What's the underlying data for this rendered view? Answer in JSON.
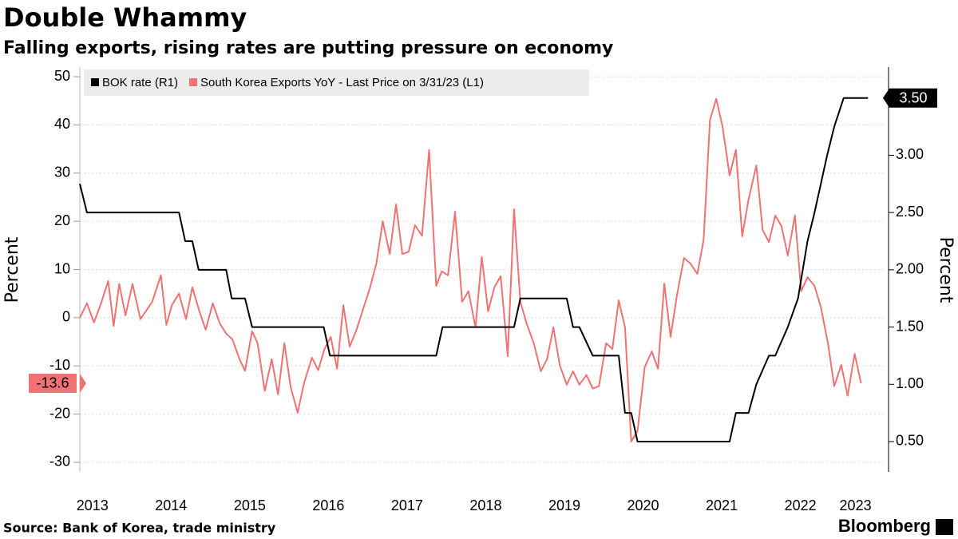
{
  "chart_data": {
    "type": "line",
    "title": "Double Whammy",
    "subtitle": "Falling exports, rising rates are putting pressure on economy",
    "ylabel": "Percent",
    "y2label": "Percent",
    "source": "Source: Bank of Korea, trade ministry",
    "brand": "Bloomberg",
    "xlim": [
      2013.34,
      2023.59
    ],
    "xticks": [
      {
        "value": 2013.5,
        "label": "2013"
      },
      {
        "value": 2014.5,
        "label": "2014"
      },
      {
        "value": 2015.5,
        "label": "2015"
      },
      {
        "value": 2016.5,
        "label": "2016"
      },
      {
        "value": 2017.5,
        "label": "2017"
      },
      {
        "value": 2018.5,
        "label": "2018"
      },
      {
        "value": 2019.5,
        "label": "2019"
      },
      {
        "value": 2020.5,
        "label": "2020"
      },
      {
        "value": 2021.5,
        "label": "2021"
      },
      {
        "value": 2022.5,
        "label": "2022"
      },
      {
        "value": 2023.2,
        "label": "2023"
      }
    ],
    "ylim": [
      -32,
      52
    ],
    "yticks": [
      -30,
      -20,
      -10,
      0,
      10,
      20,
      30,
      40,
      50
    ],
    "y2lim": [
      0.235,
      3.77
    ],
    "y2ticks": [
      {
        "value": 0.5,
        "label": "0.50"
      },
      {
        "value": 1.0,
        "label": "1.00"
      },
      {
        "value": 1.5,
        "label": "1.50"
      },
      {
        "value": 2.0,
        "label": "2.00"
      },
      {
        "value": 2.5,
        "label": "2.50"
      },
      {
        "value": 3.0,
        "label": "3.00"
      },
      {
        "value": 3.5,
        "label": "3.50"
      }
    ],
    "grid": true,
    "legend": "top-left",
    "series": [
      {
        "name": "BOK rate (R1)",
        "color": "#000000",
        "axis": "y2",
        "end_label": "3.50",
        "x": [
          2013.34,
          2013.43,
          2014.6,
          2014.68,
          2014.77,
          2014.85,
          2015.2,
          2015.27,
          2015.44,
          2015.53,
          2016.44,
          2016.52,
          2017.87,
          2017.95,
          2018.86,
          2018.94,
          2019.53,
          2019.61,
          2019.69,
          2019.86,
          2020.19,
          2020.27,
          2020.35,
          2020.43,
          2021.6,
          2021.68,
          2021.84,
          2021.94,
          2022.1,
          2022.18,
          2022.34,
          2022.47,
          2022.59,
          2022.68,
          2022.84,
          2022.93,
          2023.05,
          2023.36
        ],
        "values": [
          2.75,
          2.5,
          2.5,
          2.25,
          2.25,
          2.0,
          2.0,
          1.75,
          1.75,
          1.5,
          1.5,
          1.25,
          1.25,
          1.5,
          1.5,
          1.75,
          1.75,
          1.5,
          1.5,
          1.25,
          1.25,
          0.75,
          0.75,
          0.5,
          0.5,
          0.75,
          0.75,
          1.0,
          1.25,
          1.25,
          1.5,
          1.75,
          2.25,
          2.5,
          3.0,
          3.25,
          3.5,
          3.5
        ]
      },
      {
        "name": "South Korea Exports YoY - Last Price on 3/31/23 (L1)",
        "color": "#f07272",
        "end_label": "-13.6",
        "x": [
          2013.34,
          2013.43,
          2013.52,
          2013.61,
          2013.7,
          2013.77,
          2013.84,
          2013.92,
          2014.01,
          2014.11,
          2014.26,
          2014.37,
          2014.44,
          2014.51,
          2014.6,
          2014.69,
          2014.77,
          2014.86,
          2014.94,
          2015.03,
          2015.12,
          2015.2,
          2015.28,
          2015.37,
          2015.44,
          2015.53,
          2015.6,
          2015.69,
          2015.78,
          2015.86,
          2015.94,
          2016.02,
          2016.11,
          2016.19,
          2016.29,
          2016.37,
          2016.45,
          2016.53,
          2016.61,
          2016.69,
          2016.77,
          2016.85,
          2016.95,
          2017.03,
          2017.11,
          2017.19,
          2017.28,
          2017.36,
          2017.44,
          2017.52,
          2017.6,
          2017.69,
          2017.78,
          2017.87,
          2017.94,
          2018.02,
          2018.11,
          2018.2,
          2018.28,
          2018.37,
          2018.45,
          2018.53,
          2018.61,
          2018.69,
          2018.78,
          2018.86,
          2018.94,
          2019.02,
          2019.11,
          2019.2,
          2019.28,
          2019.36,
          2019.44,
          2019.53,
          2019.61,
          2019.69,
          2019.78,
          2019.86,
          2019.94,
          2020.03,
          2020.11,
          2020.19,
          2020.27,
          2020.35,
          2020.43,
          2020.52,
          2020.61,
          2020.69,
          2020.77,
          2020.85,
          2020.93,
          2021.02,
          2021.1,
          2021.19,
          2021.27,
          2021.35,
          2021.43,
          2021.51,
          2021.6,
          2021.68,
          2021.76,
          2021.84,
          2021.94,
          2022.02,
          2022.1,
          2022.18,
          2022.26,
          2022.34,
          2022.43,
          2022.51,
          2022.59,
          2022.68,
          2022.76,
          2022.85,
          2022.93,
          2023.02,
          2023.1,
          2023.19,
          2023.27
        ],
        "values": [
          0,
          3,
          -1,
          3,
          7.6,
          -1.7,
          7,
          0.5,
          7,
          -0.3,
          3.3,
          8.8,
          -1.5,
          2.6,
          5,
          -0.3,
          6.3,
          1.3,
          -2.5,
          3,
          -1.2,
          -3.3,
          -4.5,
          -8.6,
          -11,
          -2.8,
          -5.3,
          -15.2,
          -8.6,
          -15.9,
          -5.3,
          -14.4,
          -19.7,
          -13.6,
          -8.3,
          -10.9,
          -6.5,
          -4,
          -10.6,
          2.6,
          -6,
          -2.8,
          2.2,
          6.3,
          11.3,
          20,
          13.2,
          23.5,
          13.2,
          13.7,
          19.2,
          17,
          34.8,
          6.6,
          9.6,
          8.8,
          22,
          3.3,
          5.5,
          -2,
          12.6,
          1.3,
          6.3,
          8.6,
          -8,
          22.5,
          3.3,
          -1.2,
          -5.3,
          -11.1,
          -8.6,
          -2,
          -9.8,
          -13.9,
          -11.1,
          -13.9,
          -11.9,
          -14.7,
          -14.2,
          -5.3,
          -6.5,
          3.6,
          -2,
          -25.7,
          -23.5,
          -10.3,
          -7,
          -10.6,
          7.1,
          -4,
          4.6,
          12.4,
          11.3,
          9.1,
          16.2,
          41,
          45.4,
          39.7,
          29.5,
          34.8,
          16.9,
          24.5,
          31.6,
          18.2,
          15.7,
          21.2,
          19,
          12.9,
          21.2,
          5.5,
          8.4,
          6.6,
          2.2,
          -5.3,
          -14.2,
          -9.8,
          -16.2,
          -7.5,
          -13.6
        ]
      }
    ]
  }
}
